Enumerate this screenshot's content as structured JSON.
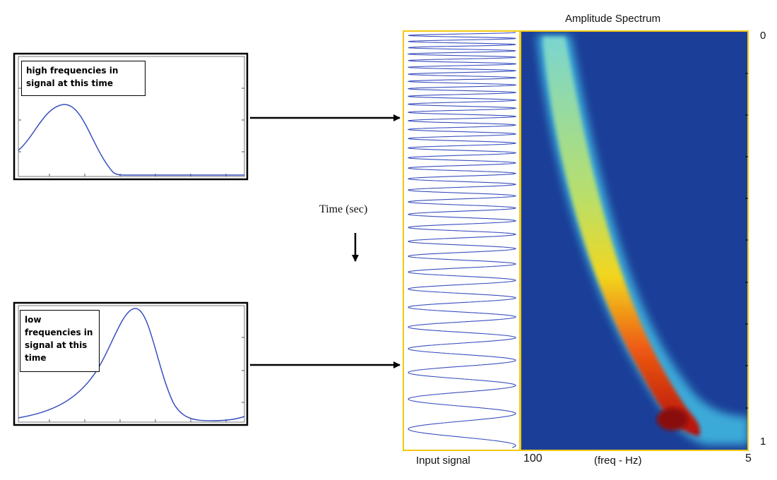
{
  "spectrogram": {
    "title": "Amplitude Spectrum",
    "time_start_label": "0",
    "time_end_label": "1",
    "freq_high_label": "100",
    "freq_axis_label": "(freq - Hz)",
    "freq_low_label": "5",
    "background_color": "#1b3f98",
    "border_color": "#f2c811"
  },
  "input_signal": {
    "label": "Input signal",
    "line_color": "#3a4fbf"
  },
  "time_axis": {
    "label": "Time (sec)"
  },
  "callouts": [
    {
      "text": "high frequencies in signal at this time"
    },
    {
      "text": "low frequencies in signal at this time"
    }
  ],
  "colors": {
    "curve": "#3a4fbf",
    "arrow": "#000000"
  }
}
